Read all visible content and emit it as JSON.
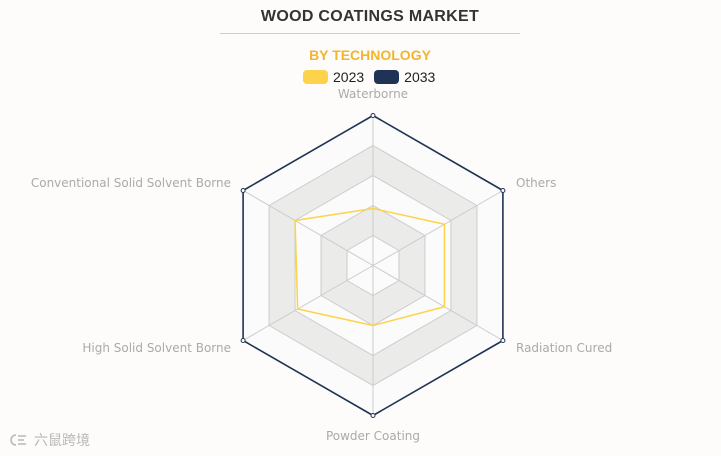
{
  "header": {
    "title": "WOOD COATINGS MARKET",
    "subtitle": "BY TECHNOLOGY"
  },
  "colors": {
    "subtitle": "#f2b530",
    "series_2023": "#fcd34a",
    "series_2033": "#1f3454",
    "split_area_light": "#fbfbfb",
    "split_area_dark": "#ebebea",
    "split_line": "#cccccc",
    "axis_label": "#aaaaaa"
  },
  "watermark": {
    "text": "六鼠跨境"
  },
  "chart_data": {
    "type": "radar",
    "indicators": [
      "Waterborne",
      "Others",
      "Radiation Cured",
      "Powder Coating",
      "High Solid Solvent Borne",
      "Conventional Solid Solvent Borne"
    ],
    "max": 100,
    "split_number": 5,
    "legend_position": "top-center",
    "series": [
      {
        "name": "2023",
        "values": [
          38,
          55,
          55,
          40,
          58,
          60
        ]
      },
      {
        "name": "2033",
        "values": [
          100,
          100,
          100,
          100,
          100,
          100
        ]
      }
    ]
  }
}
